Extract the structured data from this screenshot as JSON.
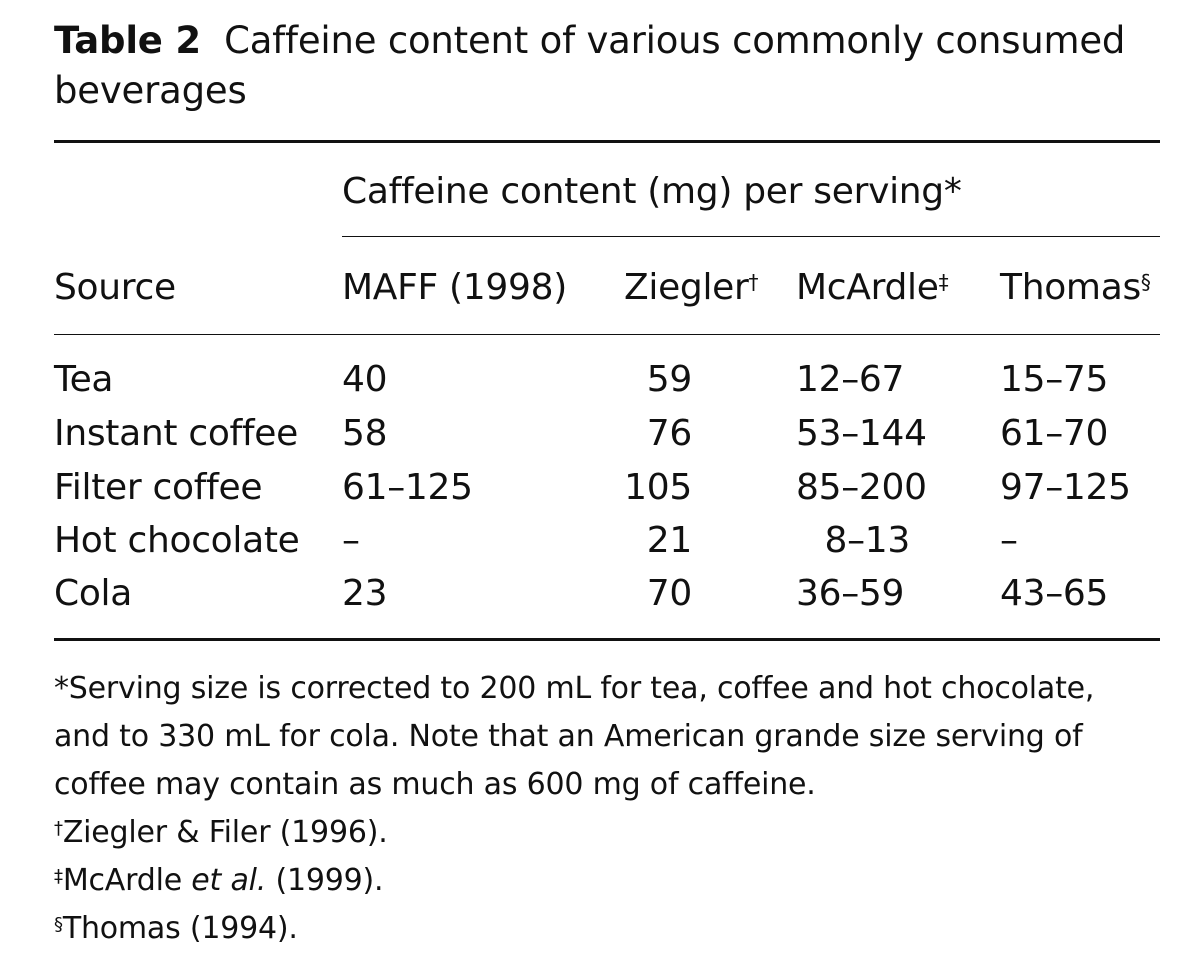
{
  "caption": {
    "label": "Table 2",
    "title": "Caffeine content of various commonly consumed beverages"
  },
  "table": {
    "spanner": "Caffeine content (mg) per serving*",
    "source_header": "Source",
    "columns": [
      {
        "name": "MAFF (1998)",
        "mark": ""
      },
      {
        "name": "Ziegler",
        "mark": "†"
      },
      {
        "name": "McArdle",
        "mark": "‡"
      },
      {
        "name": "Thomas",
        "mark": "§"
      }
    ],
    "rows": [
      {
        "source": "Tea",
        "maff": "40",
        "ziegler": "59",
        "mcardle": "12–67",
        "thomas": "15–75"
      },
      {
        "source": "Instant coffee",
        "maff": "58",
        "ziegler": "76",
        "mcardle": "53–144",
        "thomas": "61–70"
      },
      {
        "source": "Filter coffee",
        "maff": "61–125",
        "ziegler": "105",
        "mcardle": "85–200",
        "thomas": "97–125"
      },
      {
        "source": "Hot chocolate",
        "maff": "–",
        "ziegler": "21",
        "mcardle": "8–13",
        "thomas": "–"
      },
      {
        "source": "Cola",
        "maff": "23",
        "ziegler": "70",
        "mcardle": "36–59",
        "thomas": "43–65"
      }
    ]
  },
  "footnotes": {
    "serving_line1": "*Serving size is corrected to 200 mL for tea, coffee and hot chocolate,",
    "serving_line2": "and to 330 mL for cola. Note that an American grande size serving of",
    "serving_line3": "coffee may contain as much as 600 mg of caffeine.",
    "ziegler": {
      "mark": "†",
      "text": "Ziegler & Filer (1996)."
    },
    "mcardle": {
      "mark": "‡",
      "text_before": "McArdle ",
      "italic": "et al.",
      "text_after": " (1999)."
    },
    "thomas": {
      "mark": "§",
      "text": "Thomas (1994)."
    }
  }
}
